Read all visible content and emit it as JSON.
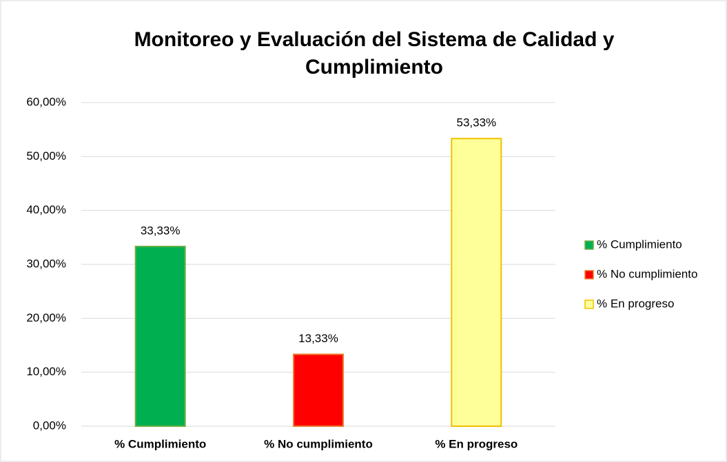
{
  "chart_data": {
    "type": "bar",
    "title": "Monitoreo y Evaluación del Sistema de Calidad y Cumplimiento",
    "categories": [
      "% Cumplimiento",
      "% No cumplimiento",
      "% En progreso"
    ],
    "values": [
      33.33,
      13.33,
      53.33
    ],
    "value_labels": [
      "33,33%",
      "13,33%",
      "53,33%"
    ],
    "colors": [
      "#00b050",
      "#ff0000",
      "#ffff99"
    ],
    "border_colors": [
      "#70ad47",
      "#ed7d31",
      "#f0c000"
    ],
    "ylim": [
      0,
      60
    ],
    "yticks": [
      {
        "value": 0,
        "label": "0,00%"
      },
      {
        "value": 10,
        "label": "10,00%"
      },
      {
        "value": 20,
        "label": "20,00%"
      },
      {
        "value": 30,
        "label": "30,00%"
      },
      {
        "value": 40,
        "label": "40,00%"
      },
      {
        "value": 50,
        "label": "50,00%"
      },
      {
        "value": 60,
        "label": "60,00%"
      }
    ],
    "grid": true,
    "legend": "right"
  }
}
